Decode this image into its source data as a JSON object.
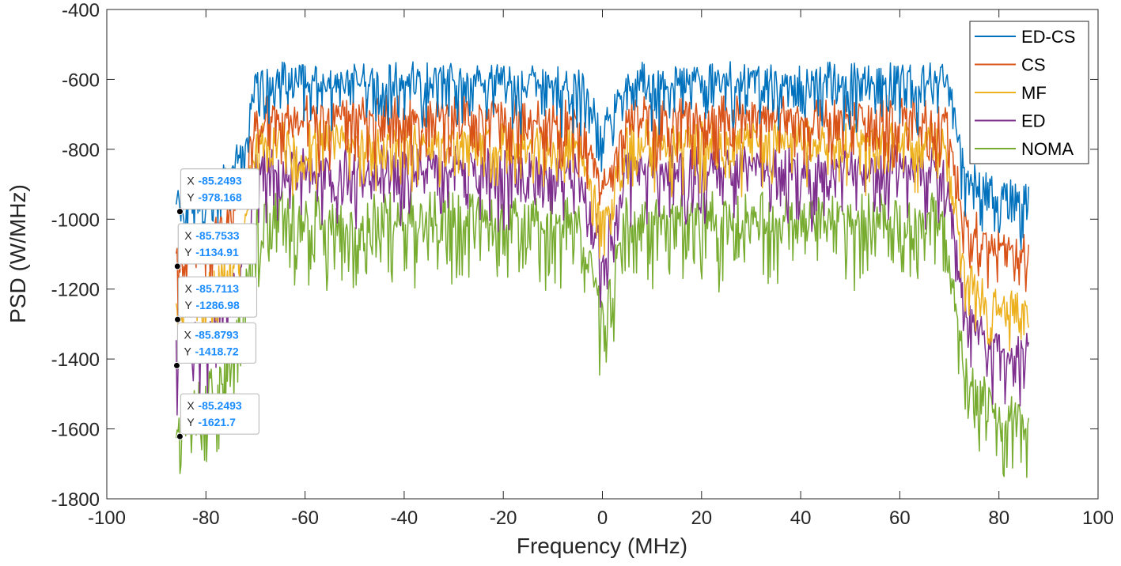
{
  "chart_data": {
    "type": "line",
    "title": "",
    "xlabel": "Frequency (MHz)",
    "ylabel": "PSD (W/MHz)",
    "xlim": [
      -100,
      100
    ],
    "ylim": [
      -1800,
      -400
    ],
    "x_ticks": [
      -100,
      -80,
      -60,
      -40,
      -20,
      0,
      20,
      40,
      60,
      80,
      100
    ],
    "y_ticks": [
      -1800,
      -1600,
      -1400,
      -1200,
      -1000,
      -800,
      -600,
      -400
    ],
    "x_tick_labels": [
      "-100",
      "-80",
      "-60",
      "-40",
      "-20",
      "0",
      "20",
      "40",
      "60",
      "80",
      "100"
    ],
    "y_tick_labels": [
      "-1800",
      "-1600",
      "-1400",
      "-1200",
      "-1000",
      "-800",
      "-600",
      "-400"
    ],
    "grid": false,
    "legend_position": "top-right",
    "series": [
      {
        "name": "ED-CS",
        "color": "#0072BD",
        "envelope": {
          "x": [
            -86,
            -80,
            -75,
            -72,
            -70,
            -60,
            -40,
            -20,
            -5,
            -2,
            0,
            2,
            5,
            20,
            40,
            60,
            69,
            71,
            73,
            76,
            80,
            86
          ],
          "y": [
            -965,
            -930,
            -870,
            -780,
            -600,
            -600,
            -600,
            -600,
            -610,
            -680,
            -760,
            -680,
            -600,
            -600,
            -600,
            -600,
            -605,
            -700,
            -860,
            -890,
            -930,
            -940
          ]
        },
        "ripple": 60
      },
      {
        "name": "CS",
        "color": "#D95319",
        "envelope": {
          "x": [
            -86,
            -80,
            -75,
            -72,
            -70,
            -60,
            -40,
            -20,
            -5,
            -2,
            0,
            2,
            5,
            20,
            40,
            60,
            69,
            71,
            73,
            76,
            80,
            86
          ],
          "y": [
            -1120,
            -1060,
            -1000,
            -900,
            -700,
            -700,
            -700,
            -700,
            -710,
            -820,
            -930,
            -820,
            -700,
            -700,
            -700,
            -700,
            -705,
            -850,
            -1000,
            -1040,
            -1085,
            -1090
          ]
        },
        "ripple": 65
      },
      {
        "name": "MF",
        "color": "#EDB120",
        "envelope": {
          "x": [
            -86,
            -80,
            -75,
            -72,
            -70,
            -60,
            -40,
            -20,
            -5,
            -2,
            0,
            2,
            5,
            20,
            40,
            60,
            69,
            71,
            73,
            76,
            80,
            86
          ],
          "y": [
            -1275,
            -1200,
            -1130,
            -1000,
            -770,
            -770,
            -770,
            -770,
            -780,
            -920,
            -1030,
            -920,
            -770,
            -770,
            -770,
            -770,
            -775,
            -950,
            -1150,
            -1210,
            -1255,
            -1255
          ]
        },
        "ripple": 65
      },
      {
        "name": "ED",
        "color": "#7E2F8E",
        "envelope": {
          "x": [
            -86,
            -80,
            -75,
            -72,
            -70,
            -60,
            -40,
            -20,
            -5,
            -2,
            0,
            2,
            5,
            20,
            40,
            60,
            69,
            71,
            73,
            76,
            80,
            86
          ],
          "y": [
            -1400,
            -1320,
            -1240,
            -1080,
            -850,
            -850,
            -850,
            -850,
            -860,
            -1000,
            -1110,
            -1000,
            -850,
            -850,
            -850,
            -850,
            -855,
            -1030,
            -1250,
            -1330,
            -1380,
            -1385
          ]
        },
        "ripple": 75
      },
      {
        "name": "NOMA",
        "color": "#77AC30",
        "envelope": {
          "x": [
            -86,
            -80,
            -75,
            -72,
            -70,
            -60,
            -40,
            -20,
            -5,
            -2,
            0,
            2,
            5,
            20,
            40,
            60,
            69,
            71,
            73,
            76,
            80,
            86
          ],
          "y": [
            -1600,
            -1500,
            -1420,
            -1200,
            -990,
            -990,
            -990,
            -990,
            -1000,
            -1160,
            -1300,
            -1160,
            -990,
            -990,
            -990,
            -990,
            -995,
            -1200,
            -1420,
            -1500,
            -1570,
            -1575
          ]
        },
        "ripple": 85
      }
    ],
    "datatips": [
      {
        "x_label": "X",
        "y_label": "Y",
        "x": "-85.2493",
        "y": "-978.168",
        "px": -85.2493,
        "py": -978.168,
        "color": "#0072BD"
      },
      {
        "x_label": "X",
        "y_label": "Y",
        "x": "-85.7533",
        "y": "-1134.91",
        "px": -85.7533,
        "py": -1134.91,
        "color": "#D95319"
      },
      {
        "x_label": "X",
        "y_label": "Y",
        "x": "-85.7113",
        "y": "-1286.98",
        "px": -85.7113,
        "py": -1286.98,
        "color": "#EDB120"
      },
      {
        "x_label": "X",
        "y_label": "Y",
        "x": "-85.8793",
        "y": "-1418.72",
        "px": -85.8793,
        "py": -1418.72,
        "color": "#7E2F8E"
      },
      {
        "x_label": "X",
        "y_label": "Y",
        "x": "-85.2493",
        "y": "-1621.7",
        "px": -85.2493,
        "py": -1621.7,
        "color": "#77AC30"
      }
    ]
  }
}
